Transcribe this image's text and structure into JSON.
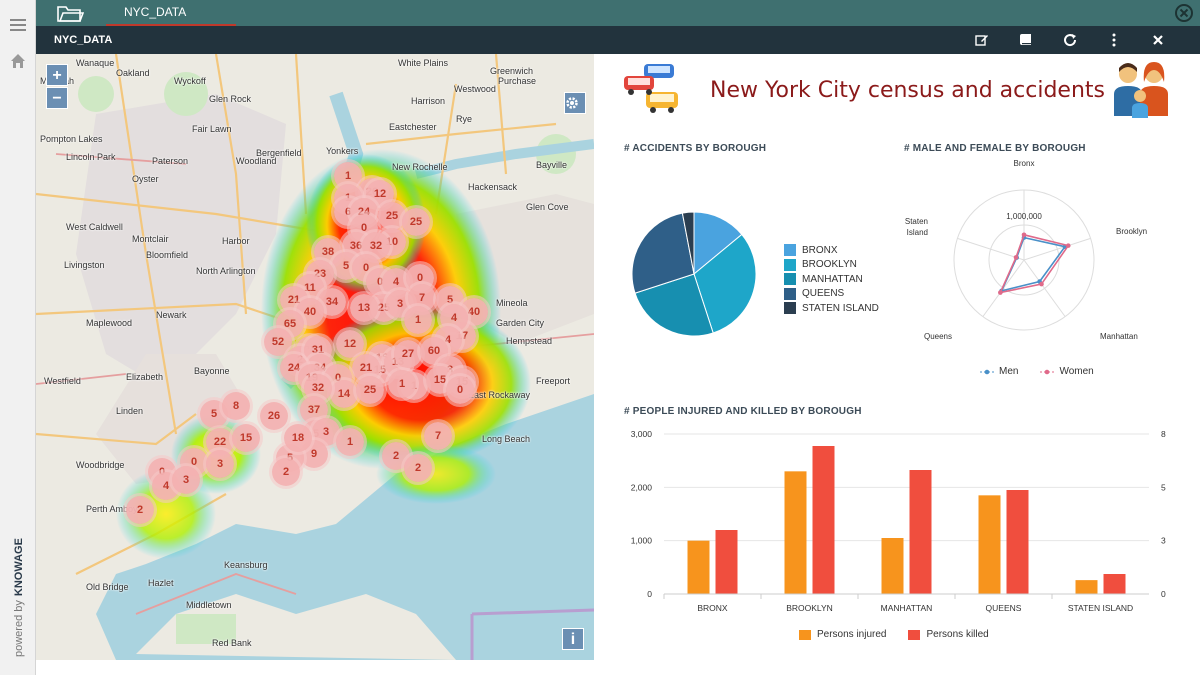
{
  "sidebar": {
    "powered_by": "powered by",
    "brand": "KNOWAGE"
  },
  "tabs": [
    {
      "label": "NYC_DATA"
    }
  ],
  "document": {
    "title": "NYC_DATA"
  },
  "map": {
    "zoom_in": "+",
    "zoom_out": "−",
    "info": "i",
    "places": [
      "Wanaque",
      "Oakland",
      "Wyckoff",
      "White Plains",
      "Greenwich",
      "Purchase",
      "Westwood",
      "Mahwah",
      "Glen Rock",
      "Harrison",
      "Rye",
      "Eastchester",
      "Pompton Lakes",
      "Fair Lawn",
      "Bergenfield",
      "Yonkers",
      "Bayville",
      "Lincoln Park",
      "Paterson",
      "New Rochelle",
      "Oyster",
      "Woodland",
      "Hackensack",
      "Glen Cove",
      "West Caldwell",
      "Montclair",
      "Livingston",
      "Bloomfield",
      "Harbor",
      "North Arlington",
      "Newark",
      "Mineola",
      "Maplewood",
      "Garden City",
      "Hempstead",
      "Elizabeth",
      "Bayonne",
      "Freeport",
      "Westfield",
      "Linden",
      "East Rockaway",
      "Long Beach",
      "Woodbridge",
      "Perth Amboy",
      "Old Bridge",
      "Hazlet",
      "Middletown",
      "Red Bank",
      "Keansburg"
    ],
    "clusters": [
      {
        "v": "1"
      },
      {
        "v": "20"
      },
      {
        "v": "12"
      },
      {
        "v": "1"
      },
      {
        "v": "6"
      },
      {
        "v": "24"
      },
      {
        "v": "25"
      },
      {
        "v": "25"
      },
      {
        "v": "0"
      },
      {
        "v": "10"
      },
      {
        "v": "36"
      },
      {
        "v": "32"
      },
      {
        "v": "38"
      },
      {
        "v": "5"
      },
      {
        "v": "0"
      },
      {
        "v": "23"
      },
      {
        "v": "0"
      },
      {
        "v": "4"
      },
      {
        "v": "0"
      },
      {
        "v": "11"
      },
      {
        "v": "21"
      },
      {
        "v": "34"
      },
      {
        "v": "40"
      },
      {
        "v": "25"
      },
      {
        "v": "16"
      },
      {
        "v": "13"
      },
      {
        "v": "3"
      },
      {
        "v": "7"
      },
      {
        "v": "5"
      },
      {
        "v": "40"
      },
      {
        "v": "17"
      },
      {
        "v": "1"
      },
      {
        "v": "65"
      },
      {
        "v": "4"
      },
      {
        "v": "26"
      },
      {
        "v": "12"
      },
      {
        "v": "15"
      },
      {
        "v": "13"
      },
      {
        "v": "4"
      },
      {
        "v": "52"
      },
      {
        "v": "2"
      },
      {
        "v": "31"
      },
      {
        "v": "21"
      },
      {
        "v": "34"
      },
      {
        "v": "27"
      },
      {
        "v": "60"
      },
      {
        "v": "24"
      },
      {
        "v": "19"
      },
      {
        "v": "0"
      },
      {
        "v": "14"
      },
      {
        "v": "25"
      },
      {
        "v": "1"
      },
      {
        "v": "3"
      },
      {
        "v": "1"
      },
      {
        "v": "15"
      },
      {
        "v": "15"
      },
      {
        "v": "32"
      },
      {
        "v": "0"
      },
      {
        "v": "5"
      },
      {
        "v": "8"
      },
      {
        "v": "26"
      },
      {
        "v": "37"
      },
      {
        "v": "5"
      },
      {
        "v": "3"
      },
      {
        "v": "22"
      },
      {
        "v": "15"
      },
      {
        "v": "9"
      },
      {
        "v": "5"
      },
      {
        "v": "18"
      },
      {
        "v": "1"
      },
      {
        "v": "2"
      },
      {
        "v": "2"
      },
      {
        "v": "2"
      },
      {
        "v": "7"
      },
      {
        "v": "0"
      },
      {
        "v": "0"
      },
      {
        "v": "3"
      },
      {
        "v": "4"
      },
      {
        "v": "3"
      },
      {
        "v": "2"
      }
    ]
  },
  "dashboard": {
    "headline": "New York City census and accidents",
    "accidents_title": "# ACCIDENTS BY BOROUGH",
    "radar_title": "# MALE AND FEMALE BY BOROUGH",
    "bars_title": "# PEOPLE INJURED AND KILLED BY BOROUGH"
  },
  "chart_data": [
    {
      "type": "pie",
      "title": "# ACCIDENTS BY BOROUGH",
      "categories": [
        "BRONX",
        "BROOKLYN",
        "MANHATTAN",
        "QUEENS",
        "STATEN ISLAND"
      ],
      "values": [
        14,
        31,
        25,
        27,
        3
      ],
      "colors": [
        "#4aa3df",
        "#1ea6c9",
        "#178fb0",
        "#2f5f88",
        "#2b3e50"
      ],
      "legend": "right"
    },
    {
      "type": "radar",
      "title": "# MALE AND FEMALE BY BOROUGH",
      "axes": [
        "Bronx",
        "Brooklyn",
        "Manhattan",
        "Queens",
        "Staten Island"
      ],
      "tick_label": "1,000,000",
      "rmax": 2000000,
      "series": [
        {
          "name": "Men",
          "values": [
            640000,
            1230000,
            760000,
            1090000,
            220000
          ],
          "color": "#4a90c8"
        },
        {
          "name": "Women",
          "values": [
            720000,
            1330000,
            850000,
            1150000,
            240000
          ],
          "color": "#e06a8a"
        }
      ],
      "legend": "bottom"
    },
    {
      "type": "bar",
      "title": "# PEOPLE INJURED AND KILLED BY BOROUGH",
      "categories": [
        "BRONX",
        "BROOKLYN",
        "MANHATTAN",
        "QUEENS",
        "STATEN ISLAND"
      ],
      "series": [
        {
          "name": "Persons injured",
          "values": [
            1000,
            2300,
            1050,
            1850,
            260
          ],
          "color": "#f7941d",
          "axis": "left"
        },
        {
          "name": "Persons killed",
          "values": [
            3.2,
            7.4,
            6.2,
            5.2,
            1.0
          ],
          "color": "#f04e3e",
          "axis": "right"
        }
      ],
      "y_left": {
        "ticks": [
          "0",
          "1,000",
          "2,000",
          "3,000"
        ],
        "max": 3000
      },
      "y_right": {
        "ticks": [
          "0",
          "3",
          "5",
          "8"
        ],
        "max": 8
      },
      "legend": "bottom"
    }
  ]
}
